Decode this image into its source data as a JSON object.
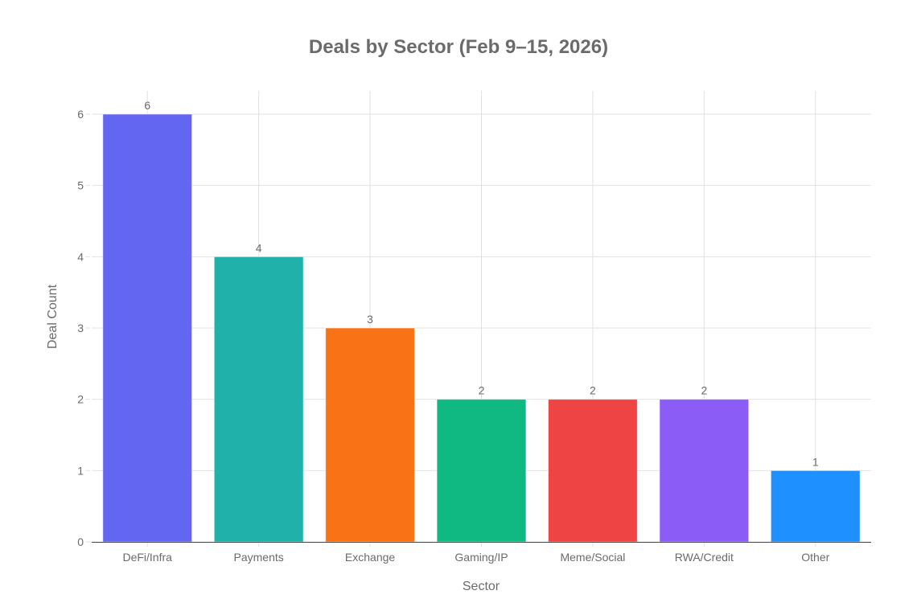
{
  "chart_data": {
    "type": "bar",
    "title": "Deals by Sector (Feb 9–15, 2026)",
    "xlabel": "Sector",
    "ylabel": "Deal Count",
    "categories": [
      "DeFi/Infra",
      "Payments",
      "Exchange",
      "Gaming/IP",
      "Meme/Social",
      "RWA/Credit",
      "Other"
    ],
    "values": [
      6,
      4,
      3,
      2,
      2,
      2,
      1
    ],
    "colors": [
      "#6366F1",
      "#20B2AA",
      "#F97316",
      "#10B981",
      "#EF4444",
      "#8B5CF6",
      "#1E90FF"
    ],
    "ylim": [
      0,
      6
    ],
    "yticks": [
      "0",
      "1",
      "2",
      "3",
      "4",
      "5",
      "6"
    ],
    "grid": true,
    "data_labels": true,
    "legend": "none"
  }
}
